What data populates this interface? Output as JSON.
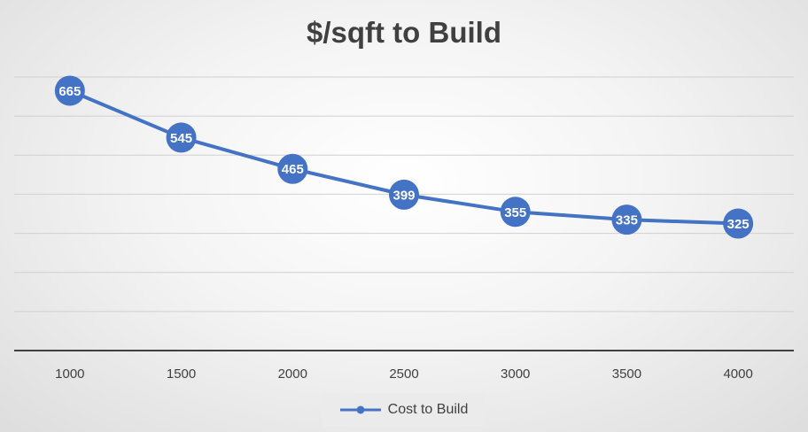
{
  "chart_data": {
    "type": "line",
    "title": "$/sqft to Build",
    "xlabel": "",
    "ylabel": "",
    "categories": [
      "1000",
      "1500",
      "2000",
      "2500",
      "3000",
      "3500",
      "4000"
    ],
    "series": [
      {
        "name": "Cost to Build",
        "values": [
          665,
          545,
          465,
          399,
          355,
          335,
          325
        ]
      }
    ],
    "ylim": [
      0,
      700
    ],
    "grid": true,
    "data_labels": true,
    "legend_position": "bottom",
    "colors": {
      "series": "#4472c4",
      "grid": "#d0d0d0",
      "axis": "#404040",
      "text": "#404040"
    }
  }
}
